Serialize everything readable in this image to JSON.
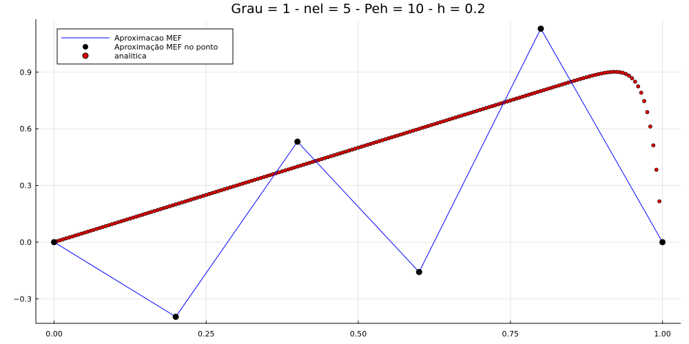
{
  "chart_data": {
    "type": "line",
    "title": "Grau = 1 - nel = 5 - Peh = 10 - h = 0.2",
    "xlabel": "",
    "ylabel": "",
    "xlim": [
      -0.03,
      1.03
    ],
    "ylim": [
      -0.43,
      1.18
    ],
    "grid": true,
    "legend_position": "top-left",
    "x_ticks": [
      "0.00",
      "0.25",
      "0.50",
      "0.75",
      "1.00"
    ],
    "x_tick_values": [
      0,
      0.25,
      0.5,
      0.75,
      1.0
    ],
    "y_ticks": [
      "-0.3",
      "0.0",
      "0.3",
      "0.6",
      "0.9"
    ],
    "y_tick_values": [
      -0.3,
      0,
      0.3,
      0.6,
      0.9
    ],
    "series": [
      {
        "name": "Aproximacao MEF",
        "kind": "line",
        "color": "#0000ff",
        "x": [
          0,
          0.2,
          0.4,
          0.6,
          0.8,
          1.0
        ],
        "y": [
          0,
          -0.395,
          0.532,
          -0.158,
          1.13,
          0
        ]
      },
      {
        "name": "Aproximação MEF no ponto",
        "kind": "scatter",
        "color": "#000000",
        "x": [
          0,
          0.2,
          0.4,
          0.6,
          0.8,
          1.0
        ],
        "y": [
          0,
          -0.395,
          0.532,
          -0.158,
          1.13,
          0
        ]
      },
      {
        "name": "analitica",
        "kind": "scatter",
        "color": "#e00000",
        "function": "(exp(Pe*x) - 1)/(exp(Pe) - 1) subtracted from x, Pe = 50",
        "pe": 50,
        "x_range": [
          0,
          1
        ],
        "n_points": 201
      }
    ]
  }
}
